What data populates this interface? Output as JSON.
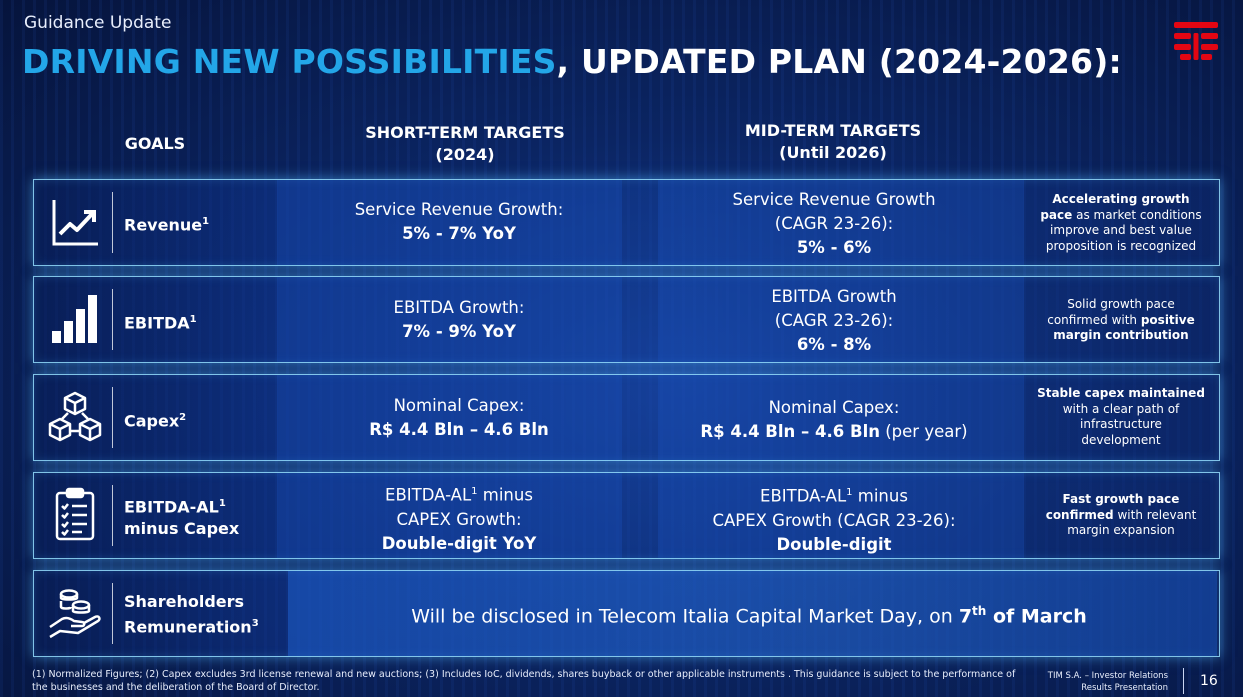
{
  "header": {
    "kicker": "Guidance Update",
    "title_highlight": "DRIVING NEW POSSIBILITIES",
    "title_rest": ", UPDATED PLAN (2024-2026):",
    "accent_color": "#23a6e8",
    "logo": "tim-logo-icon"
  },
  "columns": {
    "goals": "GOALS",
    "short_line1": "SHORT-TERM TARGETS",
    "short_line2": "(2024)",
    "mid_line1": "MID-TERM TARGETS",
    "mid_line2": "(Until 2026)"
  },
  "rows": [
    {
      "icon": "trend-chart-icon",
      "goal": "Revenue",
      "goal_sup": "1",
      "short_l1": "Service Revenue Growth:",
      "short_l2": "5% - 7% YoY",
      "mid_l1": "Service Revenue Growth",
      "mid_l2": "(CAGR 23-26):",
      "mid_l3": "5% - 6%",
      "note_b1": "Accelerating growth",
      "note_b2": "pace",
      "note_r1": " as market conditions",
      "note_r2": "improve and best value",
      "note_r3": "proposition is recognized"
    },
    {
      "icon": "bar-chart-icon",
      "goal": "EBITDA",
      "goal_sup": "1",
      "short_l1": "EBITDA Growth:",
      "short_l2": "7% - 9% YoY",
      "mid_l1": "EBITDA Growth",
      "mid_l2": "(CAGR 23-26):",
      "mid_l3": "6% - 8%",
      "note_r1": "Solid growth pace",
      "note_r2": "confirmed with ",
      "note_b1": "positive",
      "note_b2": "margin contribution"
    },
    {
      "icon": "cubes-network-icon",
      "goal": "Capex",
      "goal_sup": "2",
      "short_l1": "Nominal Capex:",
      "short_l2": "R$ 4.4 Bln – 4.6 Bln",
      "mid_l1": "Nominal Capex:",
      "mid_l2_bold": "R$ 4.4 Bln – 4.6 Bln",
      "mid_l2_rest": " (per year)",
      "note_b1": "Stable capex maintained",
      "note_r1": "with a clear path of",
      "note_r2": "infrastructure",
      "note_r3": "development"
    },
    {
      "icon": "checklist-clipboard-icon",
      "goal_l1": "EBITDA-AL",
      "goal_sup": "1",
      "goal_l2": "minus Capex",
      "short_l1a": "EBITDA-AL",
      "short_sup": "1",
      "short_l1b": " minus",
      "short_l2": "CAPEX Growth:",
      "short_l3": "Double-digit YoY",
      "mid_l1a": "EBITDA-AL",
      "mid_sup": "1",
      "mid_l1b": " minus",
      "mid_l2": "CAPEX Growth (CAGR 23-26):",
      "mid_l3": "Double-digit",
      "note_b1": "Fast growth pace",
      "note_b2": "confirmed",
      "note_r1": " with relevant",
      "note_r2": "margin expansion"
    },
    {
      "icon": "hand-coins-icon",
      "goal_l1": "Shareholders",
      "goal_l2": "Remuneration",
      "goal_sup": "3",
      "text": "Will be disclosed in Telecom Italia Capital Market Day, on ",
      "date_num": "7",
      "date_sup": "th",
      "date_rest": " of March"
    }
  ],
  "footnote": "(1) Normalized Figures; (2) Capex excludes 3rd license renewal and new auctions; (3) Includes IoC, dividends, shares buyback or other applicable instruments . This guidance is subject to the performance of the businesses  and the deliberation of the Board of Director.",
  "footer": {
    "company_line1": "TIM S.A. – Investor Relations",
    "company_line2": "Results Presentation",
    "page": "16"
  }
}
